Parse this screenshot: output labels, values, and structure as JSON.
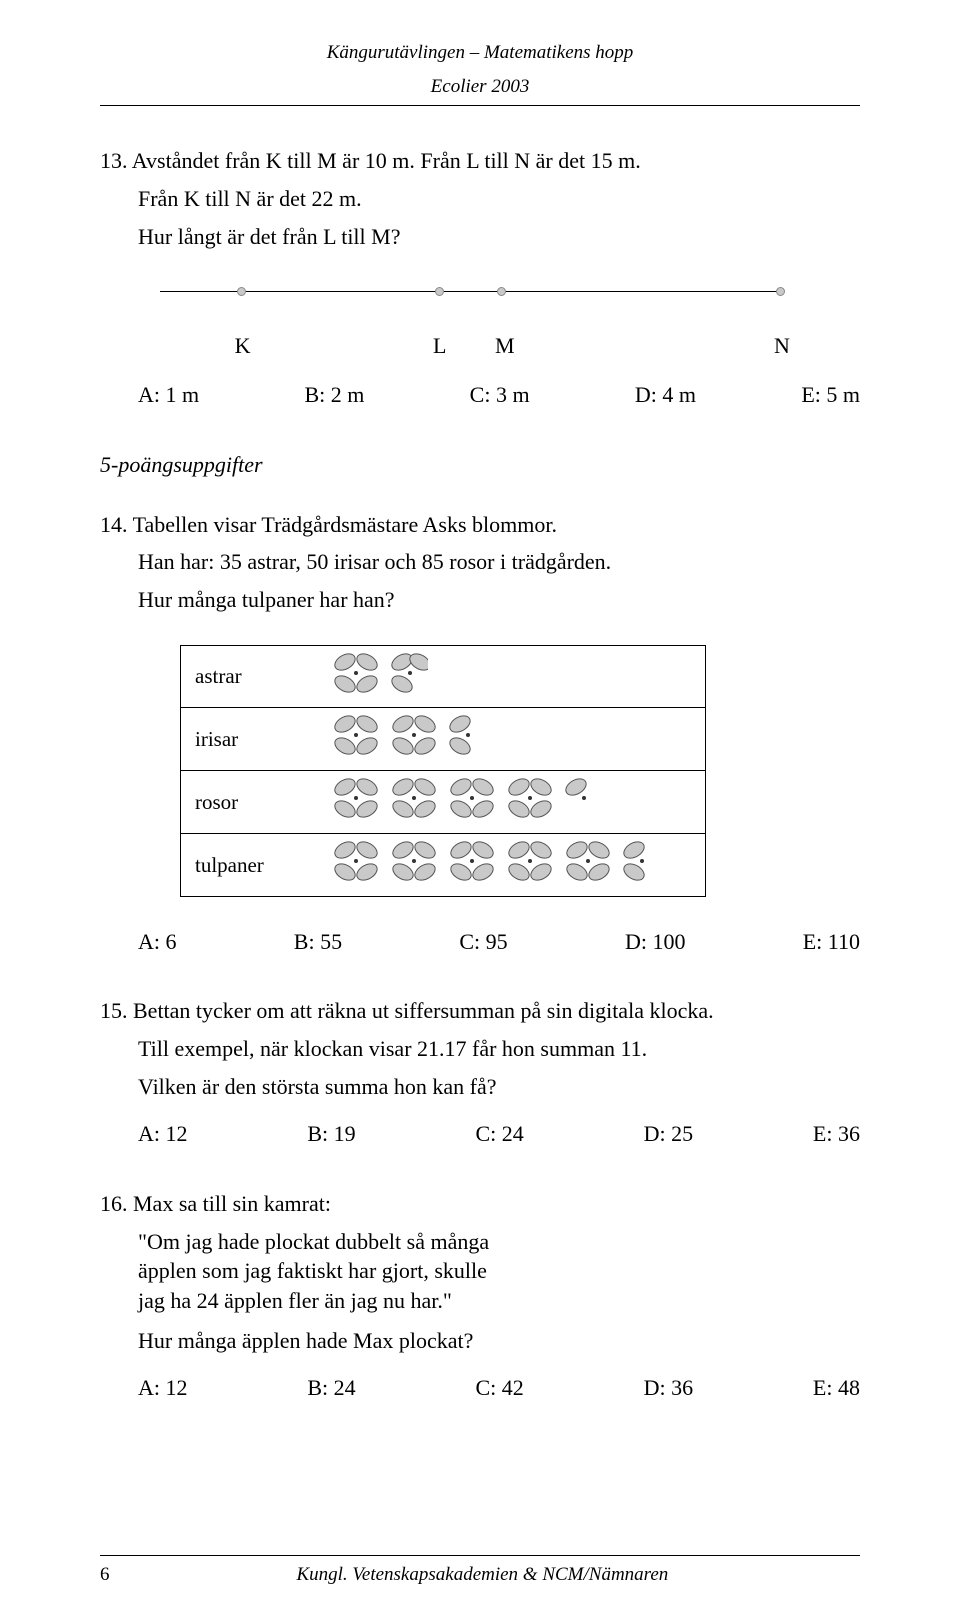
{
  "header": {
    "line1": "Kängurutävlingen – Matematikens hopp",
    "line2": "Ecolier 2003"
  },
  "q13": {
    "num": "13.",
    "text1": "Avståndet från K till M är 10 m. Från L till N är det 15 m.",
    "text2": "Från K till N är det 22 m.",
    "text3": "Hur långt är det från L till M?",
    "numberline": {
      "line_color": "#000000",
      "point_fill": "#c9c9c9",
      "point_border": "#888888",
      "points": [
        {
          "label": "K",
          "pos_pct": 13
        },
        {
          "label": "L",
          "pos_pct": 45
        },
        {
          "label": "M",
          "pos_pct": 55
        },
        {
          "label": "N",
          "pos_pct": 100
        }
      ]
    },
    "answers": {
      "a": "A: 1 m",
      "b": "B: 2 m",
      "c": "C: 3 m",
      "d": "D: 4 m",
      "e": "E: 5 m"
    }
  },
  "section5": "5-poängsuppgifter",
  "q14": {
    "num": "14.",
    "text1": "Tabellen visar Trädgårdsmästare Asks blommor.",
    "text2": "Han har: 35 astrar,  50 irisar och  85 rosor i trädgården.",
    "text3": "Hur många tulpaner har han?",
    "table": {
      "border_color": "#000000",
      "flower_fill": "#c9c9c9",
      "flower_stroke": "#555555",
      "rows": [
        {
          "label": "astrar",
          "whole": 1,
          "half": true,
          "half_size": 3
        },
        {
          "label": "irisar",
          "whole": 2,
          "half": true,
          "half_size": 2
        },
        {
          "label": "rosor",
          "whole": 4,
          "half": true,
          "half_size": 1
        },
        {
          "label": "tulpaner",
          "whole": 5,
          "half": true,
          "half_size": 2
        }
      ]
    },
    "answers": {
      "a": "A: 6",
      "b": "B: 55",
      "c": "C: 95",
      "d": "D: 100",
      "e": "E: 110"
    }
  },
  "q15": {
    "num": "15.",
    "text1": "Bettan tycker om att räkna ut siffersumman på sin digitala klocka.",
    "text2": "Till exempel, när klockan visar 21.17 får hon summan 11.",
    "text3": "Vilken är den största summa hon kan få?",
    "answers": {
      "a": "A: 12",
      "b": "B: 19",
      "c": "C: 24",
      "d": "D: 25",
      "e": "E: 36"
    }
  },
  "q16": {
    "num": "16.",
    "text1": "Max sa till sin kamrat:",
    "quote1": "\"Om jag hade plockat dubbelt så många",
    "quote2": "äpplen som jag faktiskt har gjort, skulle",
    "quote3": "jag ha 24 äpplen fler än jag nu har.\"",
    "text2": "Hur många äpplen hade Max plockat?",
    "answers": {
      "a": "A: 12",
      "b": "B: 24",
      "c": "C: 42",
      "d": "D: 36",
      "e": "E: 48"
    }
  },
  "footer": {
    "page": "6",
    "center": "Kungl. Vetenskapsakademien & NCM/Nämnaren"
  }
}
